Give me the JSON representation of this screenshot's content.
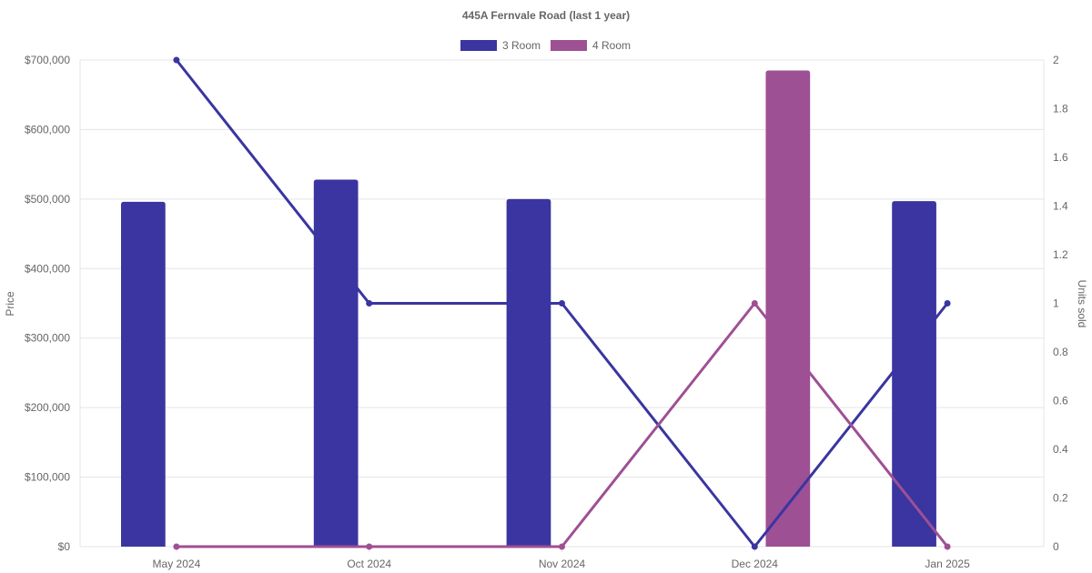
{
  "chart_data": {
    "type": "bar",
    "title": "445A Fernvale Road (last 1 year)",
    "categories": [
      "May 2024",
      "Oct 2024",
      "Nov 2024",
      "Dec 2024",
      "Jan 2025"
    ],
    "ylabel": "Price",
    "y2label": "Units sold",
    "ylim": [
      0,
      700000
    ],
    "y2lim": [
      0,
      2
    ],
    "yticks": [
      "$0",
      "$100,000",
      "$200,000",
      "$300,000",
      "$400,000",
      "$500,000",
      "$600,000",
      "$700,000"
    ],
    "y2ticks": [
      "0",
      "0.2",
      "0.4",
      "0.6",
      "0.8",
      "1",
      "1.2",
      "1.4",
      "1.6",
      "1.8",
      "2"
    ],
    "grid": true,
    "legend_position": "top",
    "series": [
      {
        "name": "3 Room",
        "color": "#3a35a0",
        "price": [
          496000,
          528000,
          500000,
          null,
          497000
        ],
        "units_sold": [
          2,
          1,
          1,
          0,
          1
        ]
      },
      {
        "name": "4 Room",
        "color": "#9e5094",
        "price": [
          null,
          null,
          null,
          685000,
          null
        ],
        "units_sold": [
          0,
          0,
          0,
          1,
          0
        ]
      }
    ]
  }
}
